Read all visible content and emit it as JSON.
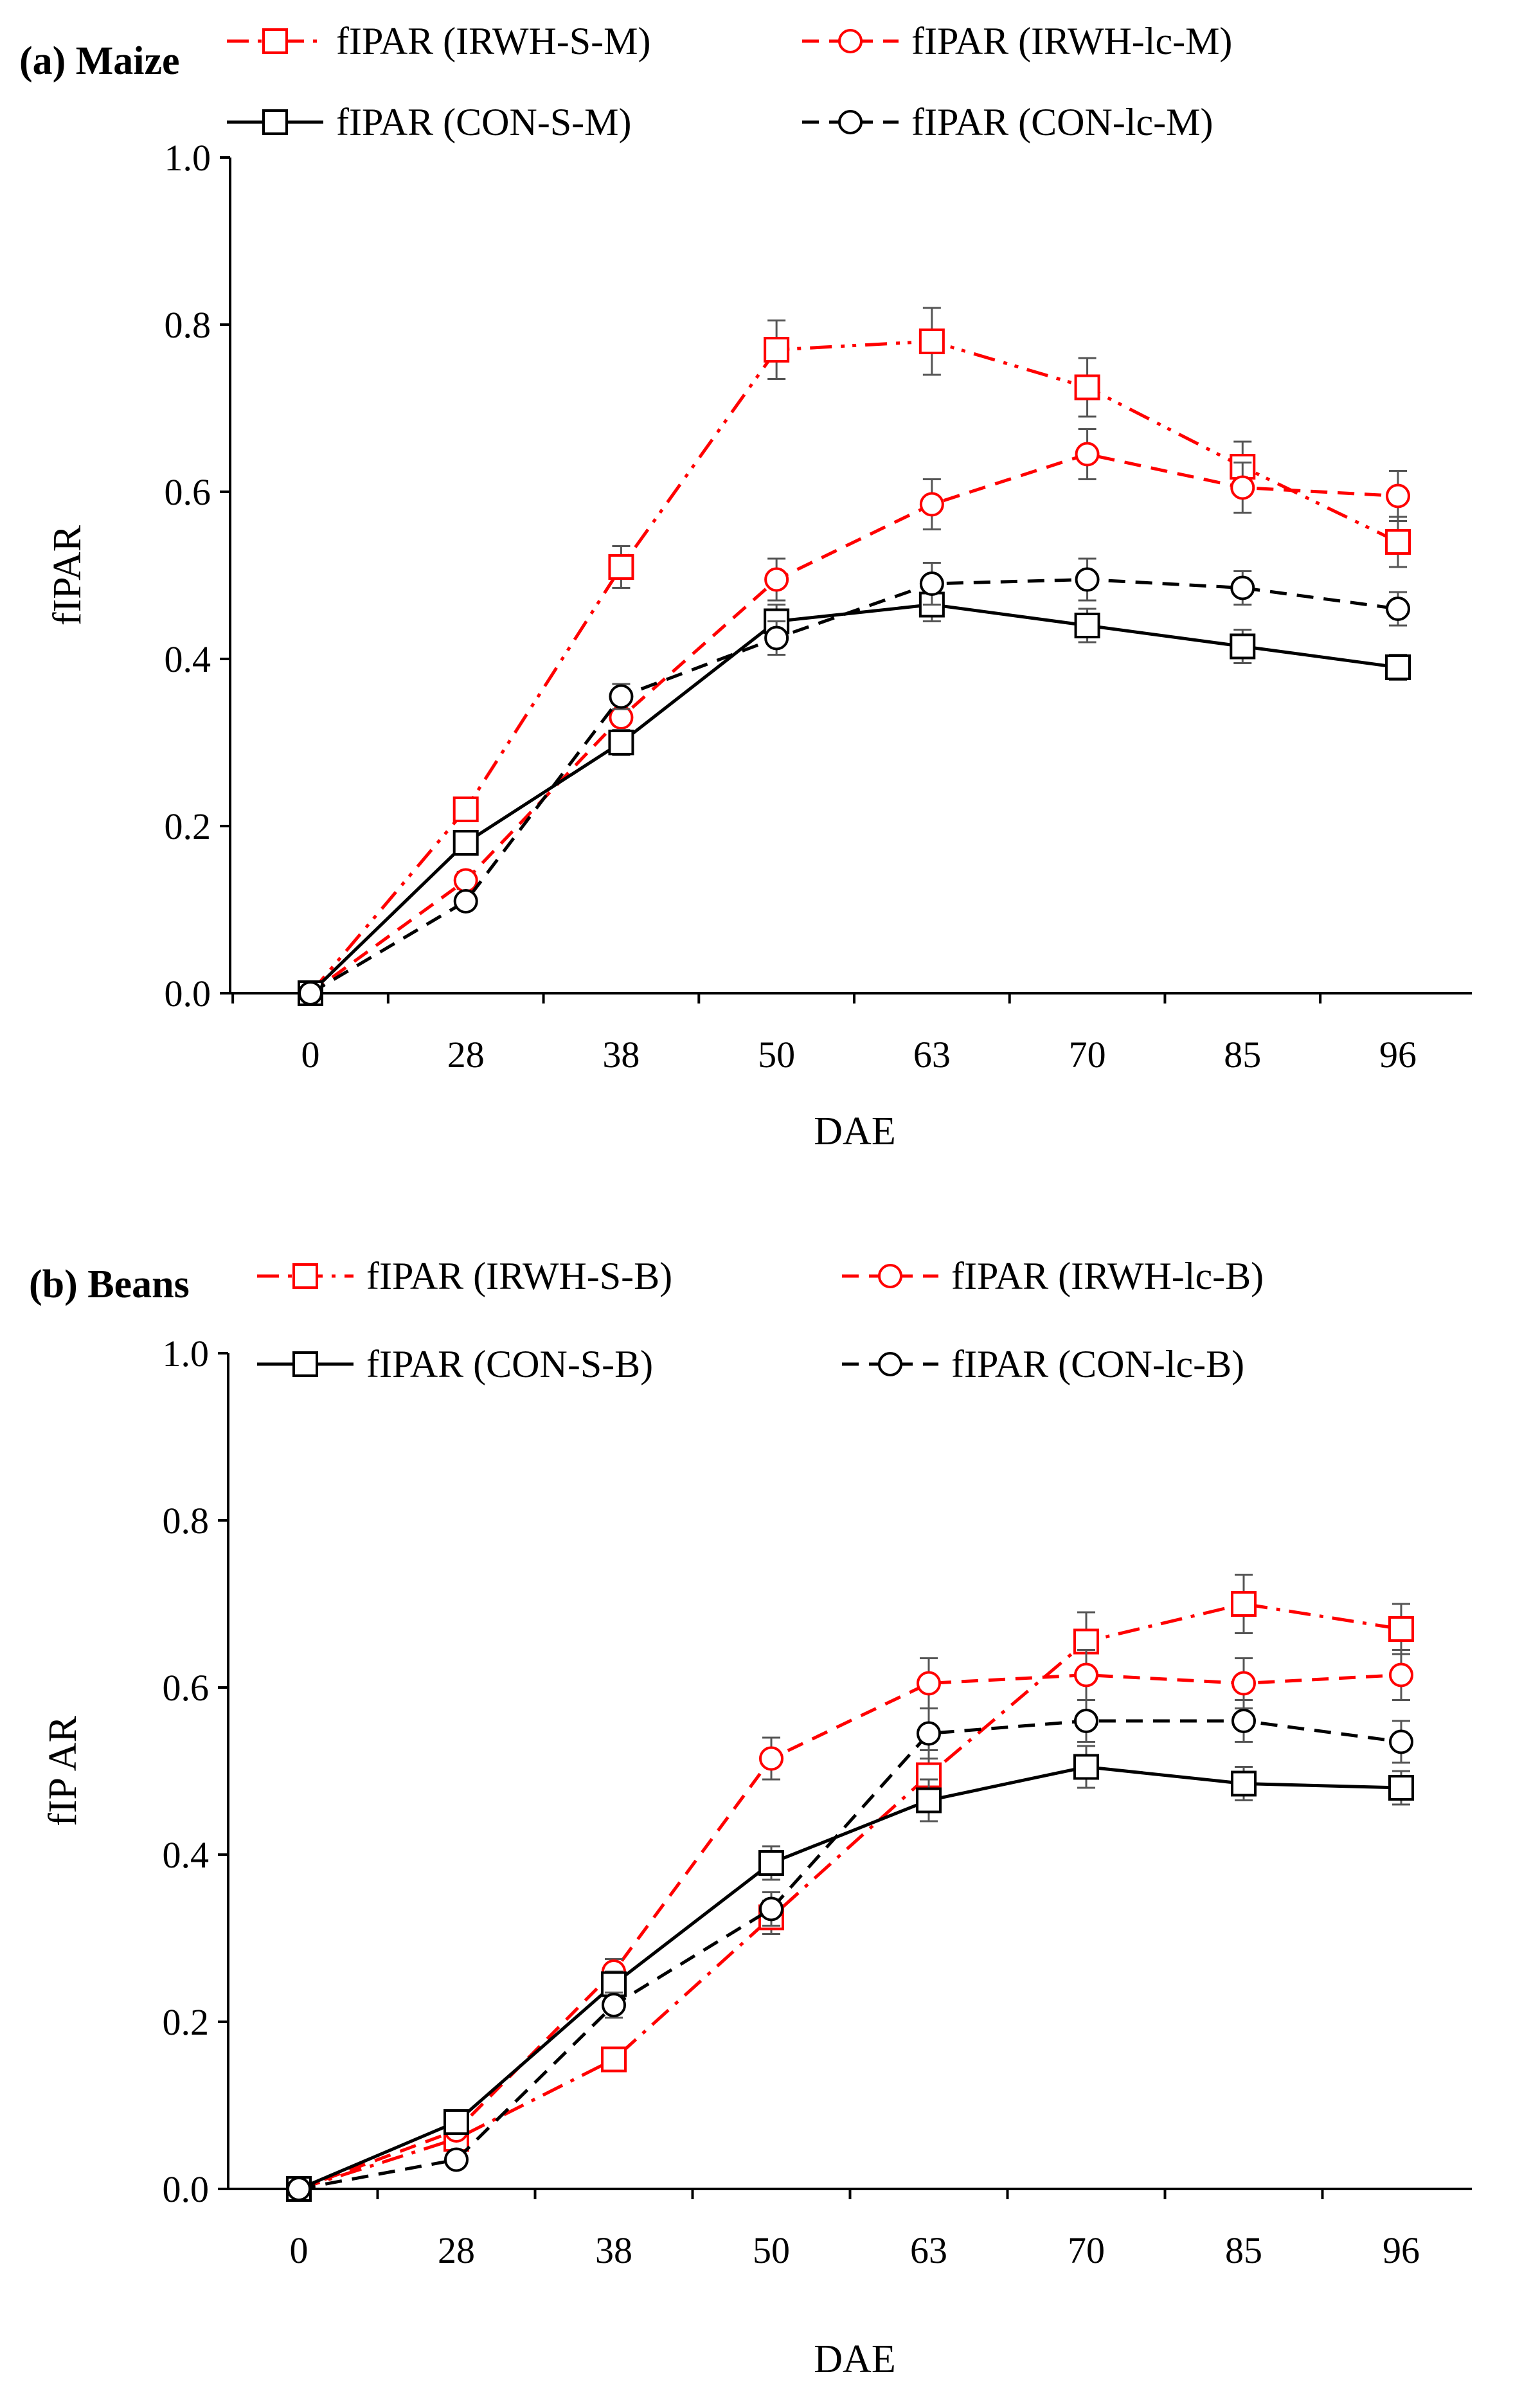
{
  "chart_data": [
    {
      "type": "line",
      "panel_label": "(a) Maize",
      "categories": [
        "0",
        "28",
        "38",
        "50",
        "63",
        "70",
        "85",
        "96"
      ],
      "xlabel": "DAE",
      "ylabel": "fIPAR",
      "ylim": [
        0,
        1.0
      ],
      "yticks": [
        "0.0",
        "0.2",
        "0.4",
        "0.6",
        "0.8",
        "1.0"
      ],
      "series": [
        {
          "name": "fIPAR (IRWH-S-M)",
          "color": "#ff0000",
          "dash": "dashdotdot",
          "marker": "square",
          "values": [
            0.0,
            0.22,
            0.51,
            0.77,
            0.78,
            0.725,
            0.63,
            0.54
          ],
          "errors": [
            0,
            0.01,
            0.025,
            0.035,
            0.04,
            0.035,
            0.03,
            0.03
          ]
        },
        {
          "name": "fIPAR (IRWH-lc-M)",
          "color": "#ff0000",
          "dash": "dashed",
          "marker": "circle",
          "values": [
            0.0,
            0.135,
            0.33,
            0.495,
            0.585,
            0.645,
            0.605,
            0.595
          ],
          "errors": [
            0,
            0.01,
            0.02,
            0.025,
            0.03,
            0.03,
            0.03,
            0.03
          ]
        },
        {
          "name": "fIPAR (CON-S-M)",
          "color": "#000000",
          "dash": "solid",
          "marker": "square",
          "values": [
            0.0,
            0.18,
            0.3,
            0.445,
            0.465,
            0.44,
            0.415,
            0.39
          ],
          "errors": [
            0,
            0.01,
            0.015,
            0.02,
            0.02,
            0.02,
            0.02,
            0.015
          ]
        },
        {
          "name": "fIPAR (CON-lc-M)",
          "color": "#000000",
          "dash": "dashed",
          "marker": "circle",
          "values": [
            0.0,
            0.11,
            0.355,
            0.425,
            0.49,
            0.495,
            0.485,
            0.46
          ],
          "errors": [
            0,
            0.008,
            0.015,
            0.02,
            0.025,
            0.025,
            0.02,
            0.02
          ]
        }
      ]
    },
    {
      "type": "line",
      "panel_label": "(b) Beans",
      "categories": [
        "0",
        "28",
        "38",
        "50",
        "63",
        "70",
        "85",
        "96"
      ],
      "xlabel": "DAE",
      "ylabel": "fIP AR",
      "ylim": [
        0,
        1.0
      ],
      "yticks": [
        "0.0",
        "0.2",
        "0.4",
        "0.6",
        "0.8",
        "1.0"
      ],
      "series": [
        {
          "name": "fIPAR (IRWH-S-B)",
          "color": "#ff0000",
          "dash": "dashdot",
          "marker": "square",
          "values": [
            0.0,
            0.06,
            0.155,
            0.325,
            0.495,
            0.655,
            0.7,
            0.67
          ],
          "errors": [
            0,
            0.008,
            0.01,
            0.02,
            0.03,
            0.035,
            0.035,
            0.03
          ]
        },
        {
          "name": "fIPAR (IRWH-lc-B)",
          "color": "#ff0000",
          "dash": "dashed",
          "marker": "circle",
          "values": [
            0.0,
            0.07,
            0.26,
            0.515,
            0.605,
            0.615,
            0.605,
            0.615
          ],
          "errors": [
            0,
            0.008,
            0.015,
            0.025,
            0.03,
            0.03,
            0.03,
            0.03
          ]
        },
        {
          "name": "fIPAR (CON-S-B)",
          "color": "#000000",
          "dash": "solid",
          "marker": "square",
          "values": [
            0.0,
            0.08,
            0.245,
            0.39,
            0.465,
            0.505,
            0.485,
            0.48
          ],
          "errors": [
            0,
            0.008,
            0.015,
            0.02,
            0.025,
            0.025,
            0.02,
            0.02
          ]
        },
        {
          "name": "fIPAR (CON-lc-B)",
          "color": "#000000",
          "dash": "dashed",
          "marker": "circle",
          "values": [
            0.0,
            0.035,
            0.22,
            0.335,
            0.545,
            0.56,
            0.56,
            0.535
          ],
          "errors": [
            0,
            0.005,
            0.015,
            0.02,
            0.03,
            0.025,
            0.025,
            0.025
          ]
        }
      ]
    }
  ]
}
